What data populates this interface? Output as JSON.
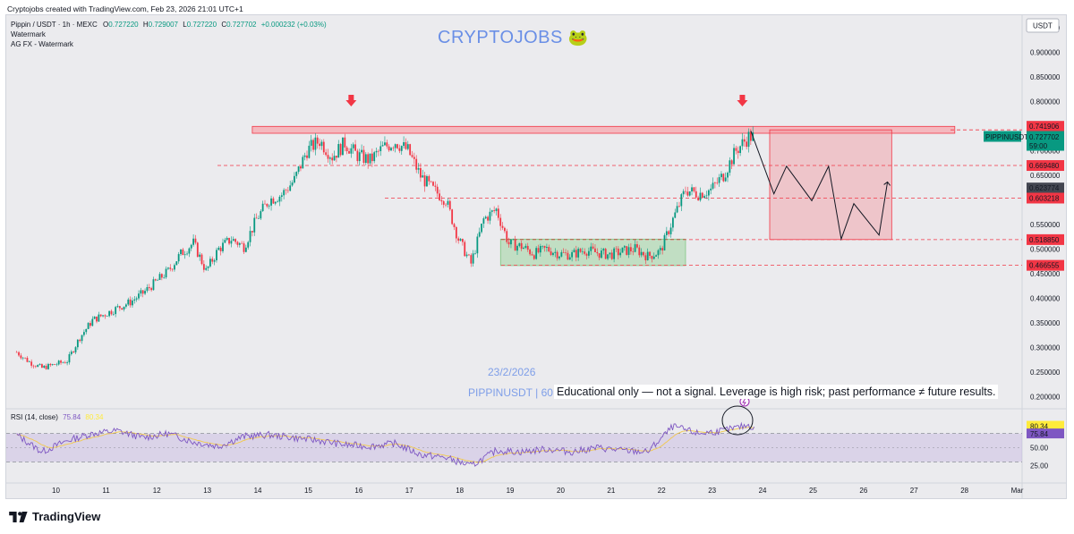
{
  "credit": "Cryptojobs created with TradingView.com, Feb 23, 2026 21:01 UTC+1",
  "legend": {
    "symbol": "Pippin / USDT · 1h · MEXC",
    "o_label": "O",
    "o": "0.727220",
    "h_label": "H",
    "h": "0.729007",
    "l_label": "L",
    "l": "0.727220",
    "c_label": "C",
    "c": "0.727702",
    "change": "+0.000232 (+0.03%)",
    "indicator1": "Watermark",
    "indicator2": "AG FX - Watermark"
  },
  "watermark": {
    "brand": "CRYPTOJOBS",
    "date": "23/2/2026",
    "symbol_interval": "PIPPINUSDT | 60",
    "disclaimer": "Educational only — not a signal. Leverage is high risk; past performance ≠ future results."
  },
  "rsi_legend": {
    "label": "RSI (14, close)",
    "rsi": "75.84",
    "ma": "80.34"
  },
  "footer": {
    "brand": "TradingView"
  },
  "colors": {
    "up": "#089981",
    "down": "#f23645",
    "background": "#ebebee",
    "zone_red": "#f7a7ad",
    "zone_green": "#a5d6a7",
    "rsi_line": "#7e57c2",
    "rsi_ma": "#ffeb3b",
    "brand": "#6a8fe6"
  },
  "chart_data": {
    "type": "candlestick",
    "symbol": "PIPPINUSDT",
    "timeframe": "1h",
    "exchange": "MEXC",
    "price_axis": {
      "currency": "USDT",
      "ticks": [
        "0.950000",
        "0.900000",
        "0.850000",
        "0.800000",
        "0.750000",
        "0.700000",
        "0.650000",
        "0.600000",
        "0.550000",
        "0.500000",
        "0.450000",
        "0.400000",
        "0.350000",
        "0.300000",
        "0.250000",
        "0.200000"
      ],
      "ylim": [
        0.175,
        0.975
      ]
    },
    "time_axis": {
      "ticks": [
        "10",
        "11",
        "12",
        "13",
        "14",
        "15",
        "16",
        "17",
        "18",
        "19",
        "20",
        "21",
        "22",
        "23",
        "24",
        "25",
        "26",
        "27",
        "28",
        "Mar"
      ]
    },
    "close_path": [
      [
        "Feb 9 06:00",
        0.29
      ],
      [
        "Feb 9 12:00",
        0.27
      ],
      [
        "Feb 9 18:00",
        0.258
      ],
      [
        "Feb 10 06:00",
        0.272
      ],
      [
        "Feb 10 12:00",
        0.32
      ],
      [
        "Feb 10 18:00",
        0.355
      ],
      [
        "Feb 11 06:00",
        0.38
      ],
      [
        "Feb 11 12:00",
        0.392
      ],
      [
        "Feb 11 18:00",
        0.41
      ],
      [
        "Feb 12 06:00",
        0.455
      ],
      [
        "Feb 12 12:00",
        0.49
      ],
      [
        "Feb 12 18:00",
        0.512
      ],
      [
        "Feb 13 00:00",
        0.455
      ],
      [
        "Feb 13 06:00",
        0.5
      ],
      [
        "Feb 13 12:00",
        0.52
      ],
      [
        "Feb 13 18:00",
        0.505
      ],
      [
        "Feb 14 00:00",
        0.56
      ],
      [
        "Feb 14 06:00",
        0.6
      ],
      [
        "Feb 14 12:00",
        0.61
      ],
      [
        "Feb 14 18:00",
        0.64
      ],
      [
        "Feb 15 00:00",
        0.7
      ],
      [
        "Feb 15 06:00",
        0.72
      ],
      [
        "Feb 15 12:00",
        0.688
      ],
      [
        "Feb 15 18:00",
        0.715
      ],
      [
        "Feb 16 00:00",
        0.69
      ],
      [
        "Feb 16 06:00",
        0.68
      ],
      [
        "Feb 16 12:00",
        0.705
      ],
      [
        "Feb 16 18:00",
        0.718
      ],
      [
        "Feb 17 00:00",
        0.7
      ],
      [
        "Feb 17 06:00",
        0.648
      ],
      [
        "Feb 17 12:00",
        0.62
      ],
      [
        "Feb 17 18:00",
        0.6
      ],
      [
        "Feb 18 00:00",
        0.52
      ],
      [
        "Feb 18 06:00",
        0.47
      ],
      [
        "Feb 18 12:00",
        0.56
      ],
      [
        "Feb 18 18:00",
        0.58
      ],
      [
        "Feb 19 00:00",
        0.51
      ],
      [
        "Feb 19 06:00",
        0.505
      ],
      [
        "Feb 19 12:00",
        0.49
      ],
      [
        "Feb 19 18:00",
        0.5
      ],
      [
        "Feb 20 00:00",
        0.49
      ],
      [
        "Feb 20 06:00",
        0.488
      ],
      [
        "Feb 20 12:00",
        0.498
      ],
      [
        "Feb 20 18:00",
        0.492
      ],
      [
        "Feb 21 00:00",
        0.488
      ],
      [
        "Feb 21 06:00",
        0.495
      ],
      [
        "Feb 21 12:00",
        0.5
      ],
      [
        "Feb 21 18:00",
        0.485
      ],
      [
        "Feb 22 00:00",
        0.495
      ],
      [
        "Feb 22 06:00",
        0.56
      ],
      [
        "Feb 22 12:00",
        0.62
      ],
      [
        "Feb 22 18:00",
        0.612
      ],
      [
        "Feb 23 00:00",
        0.62
      ],
      [
        "Feb 23 06:00",
        0.65
      ],
      [
        "Feb 23 12:00",
        0.7
      ],
      [
        "Feb 23 18:00",
        0.728
      ],
      [
        "Feb 23 21:00",
        0.727702
      ]
    ],
    "last_candle": {
      "open": 0.72722,
      "high": 0.729007,
      "low": 0.72722,
      "close": 0.727702
    },
    "horizontal_levels": [
      0.741906,
      0.66948,
      0.603218,
      0.51885,
      0.466555
    ],
    "price_labels": [
      {
        "text": "0.741906",
        "value": 0.741906,
        "style": "red"
      },
      {
        "text": "0.727702",
        "value": 0.727702,
        "style": "green",
        "tag": "PIPPINUSDT",
        "countdown": "59:00"
      },
      {
        "text": "0.669480",
        "value": 0.66948,
        "style": "red"
      },
      {
        "text": "0.623774",
        "value": 0.623774,
        "style": "dark"
      },
      {
        "text": "0.603218",
        "value": 0.603218,
        "style": "red"
      },
      {
        "text": "0.518850",
        "value": 0.51885,
        "style": "red"
      },
      {
        "text": "0.466555",
        "value": 0.466555,
        "style": "red"
      }
    ],
    "resistance_zone": {
      "from": "Feb 13 22:00",
      "to": "Feb 27 20:00",
      "low": 0.735,
      "high": 0.749
    },
    "range_box": {
      "from": "Feb 18 20:00",
      "to": "Feb 22 12:00",
      "low": 0.466,
      "high": 0.52
    },
    "projection_box": {
      "from": "Feb 24 04:00",
      "to": "Feb 26 14:00",
      "low": 0.519,
      "high": 0.742
    },
    "arrows_down": [
      "Feb 15 21:00",
      "Feb 23 15:00"
    ],
    "projected_path": [
      [
        "Feb 23 19:00",
        0.74
      ],
      [
        "Feb 24 06:00",
        0.612
      ],
      [
        "Feb 24 12:00",
        0.668
      ],
      [
        "Feb 25 00:00",
        0.598
      ],
      [
        "Feb 25 08:00",
        0.668
      ],
      [
        "Feb 25 14:00",
        0.52
      ],
      [
        "Feb 25 20:00",
        0.592
      ],
      [
        "Feb 26 08:00",
        0.528
      ],
      [
        "Feb 26 12:00",
        0.636
      ]
    ],
    "rsi": {
      "label": "RSI (14, close)",
      "ticks": [
        "75.00",
        "50.00",
        "25.00"
      ],
      "levels": [
        70,
        30
      ],
      "value": 75.84,
      "ma_value": 80.34,
      "path": [
        [
          "Feb 9 06:00",
          68
        ],
        [
          "Feb 9 18:00",
          44
        ],
        [
          "Feb 10 06:00",
          60
        ],
        [
          "Feb 10 18:00",
          70
        ],
        [
          "Feb 11 06:00",
          74
        ],
        [
          "Feb 11 18:00",
          64
        ],
        [
          "Feb 12 06:00",
          70
        ],
        [
          "Feb 12 18:00",
          58
        ],
        [
          "Feb 13 06:00",
          52
        ],
        [
          "Feb 13 18:00",
          66
        ],
        [
          "Feb 14 06:00",
          68
        ],
        [
          "Feb 14 18:00",
          64
        ],
        [
          "Feb 15 06:00",
          60
        ],
        [
          "Feb 15 18:00",
          54
        ],
        [
          "Feb 16 06:00",
          52
        ],
        [
          "Feb 16 18:00",
          56
        ],
        [
          "Feb 17 06:00",
          40
        ],
        [
          "Feb 17 18:00",
          36
        ],
        [
          "Feb 18 06:00",
          24
        ],
        [
          "Feb 18 18:00",
          46
        ],
        [
          "Feb 19 06:00",
          44
        ],
        [
          "Feb 19 18:00",
          48
        ],
        [
          "Feb 20 06:00",
          44
        ],
        [
          "Feb 20 18:00",
          50
        ],
        [
          "Feb 21 06:00",
          46
        ],
        [
          "Feb 21 18:00",
          44
        ],
        [
          "Feb 22 06:00",
          80
        ],
        [
          "Feb 22 18:00",
          70
        ],
        [
          "Feb 23 06:00",
          74
        ],
        [
          "Feb 23 18:00",
          82
        ],
        [
          "Feb 23 21:00",
          75.84
        ]
      ]
    }
  }
}
